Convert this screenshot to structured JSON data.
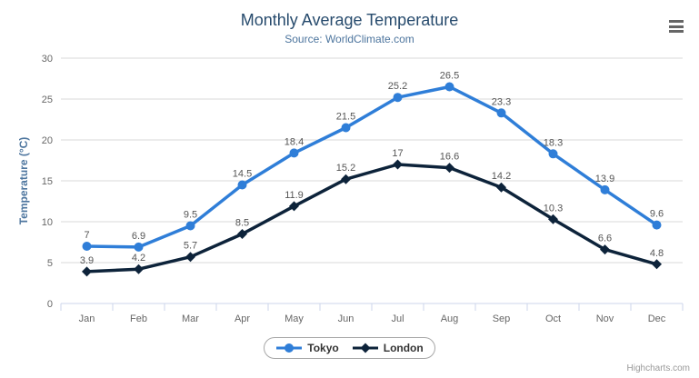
{
  "header": {
    "title": "Monthly Average Temperature",
    "subtitle": "Source: WorldClimate.com"
  },
  "credits": "Highcharts.com",
  "icons": {
    "menu": "hamburger-menu-icon"
  },
  "style": {
    "title_color": "#274b6d",
    "subtitle_color": "#4d759e",
    "axis_title_color": "#4d759e",
    "tick_label_color": "#666666",
    "data_label_color": "#555555",
    "grid_color": "#d8d8d8",
    "axis_line_color": "#ccd6eb",
    "legend_border_color": "#a7a7a7",
    "legend_text_color": "#333333",
    "menu_icon_color": "#666666",
    "credits_color": "#999999"
  },
  "chart_data": {
    "type": "line",
    "title": "Monthly Average Temperature",
    "subtitle": "Source: WorldClimate.com",
    "xlabel": "",
    "ylabel": "Temperature (°C)",
    "categories": [
      "Jan",
      "Feb",
      "Mar",
      "Apr",
      "May",
      "Jun",
      "Jul",
      "Aug",
      "Sep",
      "Oct",
      "Nov",
      "Dec"
    ],
    "series": [
      {
        "name": "Tokyo",
        "color": "#2f7ed8",
        "marker": "circle",
        "values": [
          7,
          6.9,
          9.5,
          14.5,
          18.4,
          21.5,
          25.2,
          26.5,
          23.3,
          18.3,
          13.9,
          9.6
        ]
      },
      {
        "name": "London",
        "color": "#0d233a",
        "marker": "diamond",
        "values": [
          3.9,
          4.2,
          5.7,
          8.5,
          11.9,
          15.2,
          17,
          16.6,
          14.2,
          10.3,
          6.6,
          4.8
        ]
      }
    ],
    "ylim": [
      0,
      30
    ],
    "yticks": [
      0,
      5,
      10,
      15,
      20,
      25,
      30
    ],
    "grid": true,
    "legend_position": "bottom",
    "data_labels": true
  }
}
